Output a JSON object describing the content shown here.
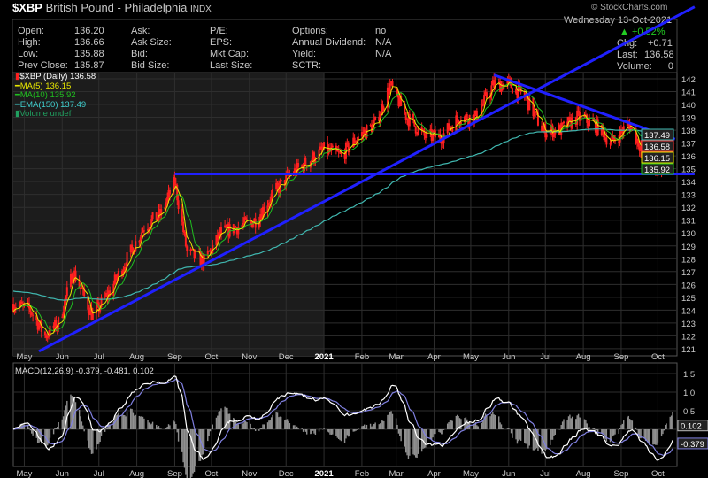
{
  "header": {
    "symbol": "$XBP",
    "name": "British Pound - Philadelphia",
    "exchange": "INDX",
    "watermark": "© StockCharts.com",
    "date": "Wednesday 13-Oct-2021",
    "pct_change": "+0.52%",
    "chg_label": "Chg:",
    "chg": "+0.71",
    "last_label": "Last:",
    "last": "136.58",
    "volume_label": "Volume:",
    "volume": "0"
  },
  "quote": [
    [
      "Open:",
      "136.20",
      "Ask:",
      "",
      "P/E:",
      "",
      "Options:",
      "no"
    ],
    [
      "High:",
      "136.66",
      "Ask Size:",
      "",
      "EPS:",
      "",
      "Annual Dividend:",
      "N/A"
    ],
    [
      "Low:",
      "135.88",
      "Bid:",
      "",
      "Mkt Cap:",
      "",
      "Yield:",
      "N/A"
    ],
    [
      "Prev Close:",
      "135.87",
      "Bid Size:",
      "",
      "Last Size:",
      "",
      "SCTR:",
      ""
    ]
  ],
  "legend": [
    {
      "label": "$XBP (Daily) 136.58",
      "color": "#ffffff",
      "swatch": "#ff2020"
    },
    {
      "label": "MA(5) 136.15",
      "color": "#e8e800",
      "swatch": "#e8e800"
    },
    {
      "label": "MA(10) 135.92",
      "color": "#20c020",
      "swatch": "#20c020"
    },
    {
      "label": "EMA(150) 137.49",
      "color": "#40d0d0",
      "swatch": "#40d0d0"
    },
    {
      "label": "Volume undef",
      "color": "#20a060",
      "swatch": "#20a060"
    }
  ],
  "macd_legend": "MACD(12,26,9) -0.379, -0.481, 0.102",
  "colors": {
    "up": "#ff2020",
    "ma5": "#e8e800",
    "ma10": "#20c020",
    "ema150": "#40b8b0",
    "trendline": "#2020ff",
    "macd": "#ffffff",
    "signal": "#8080e0",
    "hist": "#909090"
  },
  "chart_data": {
    "type": "candlestick",
    "price_axis": {
      "ticks": [
        121,
        122,
        123,
        124,
        125,
        126,
        127,
        128,
        129,
        130,
        131,
        132,
        133,
        134,
        135,
        136,
        137,
        138,
        139,
        140,
        141,
        142
      ],
      "range": [
        120.6,
        142.8
      ]
    },
    "x_labels": [
      [
        "2020-05-01",
        "May"
      ],
      [
        "2020-06-01",
        "Jun"
      ],
      [
        "2020-07-01",
        "Jul"
      ],
      [
        "2020-08-01",
        "Aug"
      ],
      [
        "2020-09-01",
        "Sep"
      ],
      [
        "2020-10-01",
        "Oct"
      ],
      [
        "2020-11-01",
        "Nov"
      ],
      [
        "2020-12-01",
        "Dec"
      ],
      [
        "2021-01-01",
        "2021"
      ],
      [
        "2021-02-01",
        "Feb"
      ],
      [
        "2021-03-01",
        "Mar"
      ],
      [
        "2021-04-01",
        "Apr"
      ],
      [
        "2021-05-01",
        "May"
      ],
      [
        "2021-06-01",
        "Jun"
      ],
      [
        "2021-07-01",
        "Jul"
      ],
      [
        "2021-08-01",
        "Aug"
      ],
      [
        "2021-09-01",
        "Sep"
      ],
      [
        "2021-10-01",
        "Oct"
      ]
    ],
    "date_range": [
      "2020-04-22",
      "2021-10-13"
    ],
    "closes": [
      [
        "2020-04-22",
        124.5
      ],
      [
        "2020-05-06",
        124
      ],
      [
        "2020-05-18",
        122
      ],
      [
        "2020-05-29",
        123
      ],
      [
        "2020-06-10",
        127
      ],
      [
        "2020-06-26",
        123.5
      ],
      [
        "2020-07-10",
        125.5
      ],
      [
        "2020-07-24",
        128
      ],
      [
        "2020-08-07",
        130.5
      ],
      [
        "2020-08-21",
        131.5
      ],
      [
        "2020-09-01",
        134
      ],
      [
        "2020-09-11",
        128.5
      ],
      [
        "2020-09-25",
        127.8
      ],
      [
        "2020-10-09",
        130
      ],
      [
        "2020-10-23",
        130.5
      ],
      [
        "2020-11-06",
        131
      ],
      [
        "2020-11-20",
        133
      ],
      [
        "2020-12-04",
        134.5
      ],
      [
        "2020-12-18",
        135.5
      ],
      [
        "2021-01-01",
        136.5
      ],
      [
        "2021-01-15",
        136
      ],
      [
        "2021-01-29",
        137.5
      ],
      [
        "2021-02-12",
        138.5
      ],
      [
        "2021-02-24",
        141.5
      ],
      [
        "2021-03-10",
        139
      ],
      [
        "2021-03-24",
        137.5
      ],
      [
        "2021-04-07",
        137.5
      ],
      [
        "2021-04-21",
        139
      ],
      [
        "2021-05-05",
        139
      ],
      [
        "2021-05-19",
        141.5
      ],
      [
        "2021-06-01",
        141.6
      ],
      [
        "2021-06-15",
        140.5
      ],
      [
        "2021-06-29",
        138
      ],
      [
        "2021-07-13",
        138
      ],
      [
        "2021-07-27",
        139
      ],
      [
        "2021-08-10",
        138.5
      ],
      [
        "2021-08-24",
        137
      ],
      [
        "2021-09-07",
        138.5
      ],
      [
        "2021-09-21",
        136
      ],
      [
        "2021-09-29",
        134.5
      ],
      [
        "2021-10-13",
        136.58
      ]
    ],
    "trendlines": [
      [
        [
          "2020-05-13",
          120.8
        ],
        [
          "2021-10-31",
          147.6
        ]
      ],
      [
        [
          "2020-09-01",
          134.6
        ],
        [
          "2021-10-31",
          134.6
        ]
      ],
      [
        [
          "2021-05-20",
          142.3
        ],
        [
          "2021-10-15",
          137.3
        ]
      ]
    ],
    "price_tags": [
      "137.49",
      "136.58",
      "136.15",
      "135.92"
    ],
    "macd_axis": {
      "ticks": [
        -0.5,
        0,
        0.5,
        1.0,
        1.5
      ],
      "tick_labels": [
        "",
        "",
        "0.5",
        "1.0",
        "1.5"
      ],
      "range": [
        -1.0,
        1.9
      ]
    },
    "macd_tags": [
      "0.102",
      "-0.379"
    ]
  }
}
